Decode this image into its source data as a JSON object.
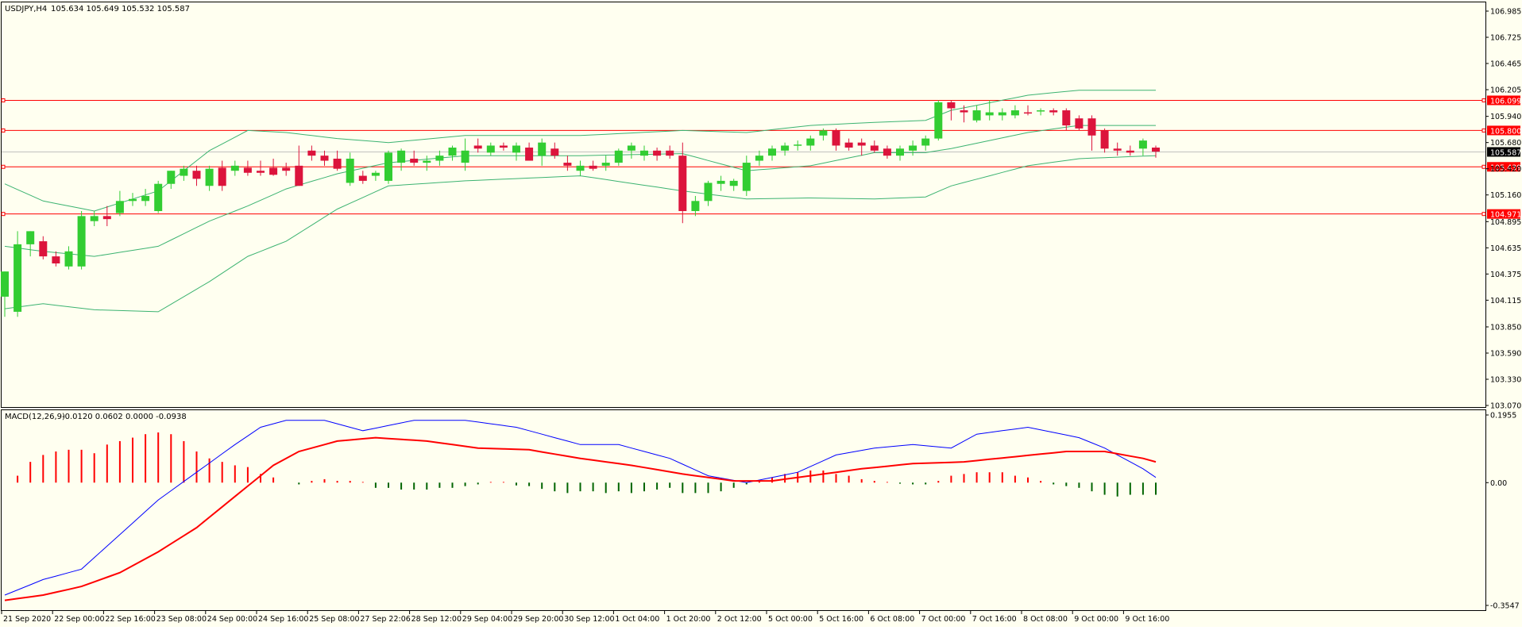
{
  "colors": {
    "background": "#FFFFF0",
    "frame": "#000000",
    "bull": "#32CD32",
    "bear": "#DC143C",
    "band": "#3CB371",
    "level": "#FF0000",
    "macd_line": "#0000FF",
    "signal_line": "#FF0000",
    "hist_pos": "#FF0000",
    "hist_neg": "#006400",
    "bid_line": "#C0C0C0"
  },
  "header": {
    "symbol_label": "USDJPY,H4",
    "ohlc_values": "105.634 105.649 105.532 105.587"
  },
  "indicator": {
    "label": "MACD(12,26,9)",
    "values": "-0.0120 0.0602 0.0000 -0.0938"
  },
  "price_axis": {
    "ticks": [
      "106.985",
      "106.725",
      "106.465",
      "106.205",
      "105.940",
      "105.680",
      "105.420",
      "105.160",
      "104.895",
      "104.635",
      "104.375",
      "104.115",
      "103.850",
      "103.590",
      "103.330",
      "103.070"
    ],
    "current_price": "105.587"
  },
  "levels": [
    "106.099",
    "105.800",
    "105.439",
    "104.971"
  ],
  "macd_axis": {
    "ticks": [
      "0.1955",
      "0.00",
      "-0.3547"
    ]
  },
  "time_axis": {
    "labels": [
      "21 Sep 2020",
      "22 Sep 00:00",
      "22 Sep 16:00",
      "23 Sep 08:00",
      "24 Sep 00:00",
      "24 Sep 16:00",
      "25 Sep 08:00",
      "27 Sep 22:06",
      "28 Sep 12:00",
      "29 Sep 04:00",
      "29 Sep 20:00",
      "30 Sep 12:00",
      "1 Oct 04:00",
      "1 Oct 20:00",
      "2 Oct 12:00",
      "5 Oct 00:00",
      "5 Oct 16:00",
      "6 Oct 08:00",
      "7 Oct 00:00",
      "7 Oct 16:00",
      "8 Oct 08:00",
      "9 Oct 00:00",
      "9 Oct 16:00"
    ]
  },
  "chart_data": [
    {
      "type": "candlestick",
      "title": "USDJPY,H4",
      "ylim": [
        103.07,
        106.985
      ],
      "candles": [
        [
          104.15,
          104.4,
          103.95,
          104.4
        ],
        [
          104.0,
          104.8,
          103.95,
          104.67
        ],
        [
          104.67,
          104.8,
          104.55,
          104.8
        ],
        [
          104.7,
          104.75,
          104.52,
          104.55
        ],
        [
          104.55,
          104.6,
          104.45,
          104.48
        ],
        [
          104.45,
          104.65,
          104.42,
          104.6
        ],
        [
          104.45,
          105.0,
          104.42,
          104.95
        ],
        [
          104.9,
          105.0,
          104.85,
          104.95
        ],
        [
          104.95,
          105.05,
          104.85,
          104.92
        ],
        [
          104.98,
          105.2,
          104.95,
          105.1
        ],
        [
          105.1,
          105.18,
          105.05,
          105.12
        ],
        [
          105.1,
          105.22,
          105.05,
          105.15
        ],
        [
          105.0,
          105.3,
          104.98,
          105.27
        ],
        [
          105.27,
          105.4,
          105.22,
          105.4
        ],
        [
          105.35,
          105.45,
          105.3,
          105.42
        ],
        [
          105.4,
          105.45,
          105.25,
          105.32
        ],
        [
          105.25,
          105.45,
          105.2,
          105.42
        ],
        [
          105.43,
          105.5,
          105.2,
          105.25
        ],
        [
          105.4,
          105.5,
          105.35,
          105.45
        ],
        [
          105.43,
          105.5,
          105.35,
          105.38
        ],
        [
          105.4,
          105.5,
          105.35,
          105.38
        ],
        [
          105.43,
          105.52,
          105.35,
          105.36
        ],
        [
          105.43,
          105.48,
          105.35,
          105.4
        ],
        [
          105.45,
          105.65,
          105.25,
          105.25
        ],
        [
          105.6,
          105.65,
          105.5,
          105.55
        ],
        [
          105.55,
          105.6,
          105.45,
          105.5
        ],
        [
          105.52,
          105.6,
          105.4,
          105.42
        ],
        [
          105.28,
          105.58,
          105.25,
          105.52
        ],
        [
          105.35,
          105.4,
          105.27,
          105.3
        ],
        [
          105.35,
          105.4,
          105.3,
          105.38
        ],
        [
          105.3,
          105.6,
          105.27,
          105.58
        ],
        [
          105.48,
          105.62,
          105.4,
          105.6
        ],
        [
          105.52,
          105.6,
          105.45,
          105.48
        ],
        [
          105.48,
          105.55,
          105.4,
          105.5
        ],
        [
          105.5,
          105.6,
          105.45,
          105.55
        ],
        [
          105.55,
          105.65,
          105.5,
          105.63
        ],
        [
          105.48,
          105.72,
          105.4,
          105.6
        ],
        [
          105.65,
          105.72,
          105.58,
          105.62
        ],
        [
          105.58,
          105.68,
          105.55,
          105.65
        ],
        [
          105.65,
          105.68,
          105.6,
          105.63
        ],
        [
          105.58,
          105.68,
          105.5,
          105.65
        ],
        [
          105.63,
          105.68,
          105.5,
          105.5
        ],
        [
          105.55,
          105.72,
          105.45,
          105.68
        ],
        [
          105.62,
          105.68,
          105.52,
          105.55
        ],
        [
          105.48,
          105.55,
          105.4,
          105.45
        ],
        [
          105.4,
          105.5,
          105.35,
          105.45
        ],
        [
          105.45,
          105.5,
          105.4,
          105.42
        ],
        [
          105.45,
          105.55,
          105.4,
          105.48
        ],
        [
          105.48,
          105.62,
          105.45,
          105.6
        ],
        [
          105.6,
          105.68,
          105.52,
          105.65
        ],
        [
          105.55,
          105.65,
          105.5,
          105.6
        ],
        [
          105.6,
          105.63,
          105.5,
          105.55
        ],
        [
          105.6,
          105.65,
          105.52,
          105.55
        ],
        [
          105.55,
          105.68,
          104.88,
          105.0
        ],
        [
          105.0,
          105.15,
          104.95,
          105.1
        ],
        [
          105.1,
          105.3,
          105.05,
          105.28
        ],
        [
          105.27,
          105.35,
          105.2,
          105.3
        ],
        [
          105.25,
          105.32,
          105.2,
          105.3
        ],
        [
          105.2,
          105.55,
          105.15,
          105.48
        ],
        [
          105.5,
          105.6,
          105.45,
          105.55
        ],
        [
          105.55,
          105.65,
          105.5,
          105.62
        ],
        [
          105.6,
          105.68,
          105.55,
          105.65
        ],
        [
          105.65,
          105.7,
          105.6,
          105.66
        ],
        [
          105.65,
          105.75,
          105.6,
          105.72
        ],
        [
          105.75,
          105.82,
          105.7,
          105.8
        ],
        [
          105.8,
          105.82,
          105.6,
          105.65
        ],
        [
          105.68,
          105.72,
          105.6,
          105.63
        ],
        [
          105.68,
          105.72,
          105.55,
          105.65
        ],
        [
          105.65,
          105.7,
          105.58,
          105.6
        ],
        [
          105.62,
          105.65,
          105.52,
          105.55
        ],
        [
          105.55,
          105.65,
          105.5,
          105.62
        ],
        [
          105.6,
          105.7,
          105.55,
          105.65
        ],
        [
          105.65,
          105.75,
          105.6,
          105.72
        ],
        [
          105.72,
          106.1,
          105.7,
          106.08
        ],
        [
          106.08,
          106.1,
          105.9,
          106.02
        ],
        [
          106.0,
          106.05,
          105.88,
          105.98
        ],
        [
          105.9,
          106.05,
          105.88,
          106.0
        ],
        [
          105.95,
          106.1,
          105.9,
          105.98
        ],
        [
          105.95,
          106.02,
          105.9,
          105.98
        ],
        [
          105.95,
          106.05,
          105.92,
          106.0
        ],
        [
          105.98,
          106.05,
          105.95,
          105.97
        ],
        [
          106.0,
          106.02,
          105.95,
          106.0
        ],
        [
          106.0,
          106.02,
          105.95,
          105.98
        ],
        [
          106.0,
          106.02,
          105.8,
          105.85
        ],
        [
          105.92,
          105.95,
          105.8,
          105.82
        ],
        [
          105.92,
          105.95,
          105.6,
          105.75
        ],
        [
          105.8,
          105.82,
          105.58,
          105.62
        ],
        [
          105.62,
          105.68,
          105.55,
          105.6
        ],
        [
          105.6,
          105.65,
          105.55,
          105.58
        ],
        [
          105.62,
          105.72,
          105.55,
          105.7
        ],
        [
          105.63,
          105.65,
          105.53,
          105.59
        ]
      ],
      "bands": {
        "upper_anchors": [
          [
            0,
            105.27
          ],
          [
            3,
            105.1
          ],
          [
            7,
            105.0
          ],
          [
            12,
            105.2
          ],
          [
            16,
            105.6
          ],
          [
            19,
            105.8
          ],
          [
            22,
            105.78
          ],
          [
            26,
            105.72
          ],
          [
            30,
            105.68
          ],
          [
            36,
            105.75
          ],
          [
            45,
            105.75
          ],
          [
            53,
            105.8
          ],
          [
            58,
            105.78
          ],
          [
            63,
            105.85
          ],
          [
            68,
            105.88
          ],
          [
            72,
            105.9
          ],
          [
            74,
            106.0
          ],
          [
            80,
            106.15
          ],
          [
            84,
            106.2
          ],
          [
            90,
            106.2
          ]
        ],
        "middle_anchors": [
          [
            0,
            104.65
          ],
          [
            3,
            104.6
          ],
          [
            7,
            104.55
          ],
          [
            12,
            104.65
          ],
          [
            16,
            104.9
          ],
          [
            19,
            105.05
          ],
          [
            22,
            105.22
          ],
          [
            26,
            105.37
          ],
          [
            30,
            105.48
          ],
          [
            36,
            105.55
          ],
          [
            45,
            105.55
          ],
          [
            53,
            105.57
          ],
          [
            58,
            105.4
          ],
          [
            63,
            105.45
          ],
          [
            68,
            105.58
          ],
          [
            72,
            105.58
          ],
          [
            74,
            105.62
          ],
          [
            80,
            105.78
          ],
          [
            84,
            105.85
          ],
          [
            90,
            105.85
          ]
        ],
        "lower_anchors": [
          [
            0,
            104.03
          ],
          [
            3,
            104.08
          ],
          [
            7,
            104.02
          ],
          [
            12,
            104.0
          ],
          [
            16,
            104.3
          ],
          [
            19,
            104.55
          ],
          [
            22,
            104.7
          ],
          [
            26,
            105.02
          ],
          [
            30,
            105.25
          ],
          [
            36,
            105.3
          ],
          [
            45,
            105.35
          ],
          [
            53,
            105.2
          ],
          [
            58,
            105.12
          ],
          [
            63,
            105.13
          ],
          [
            68,
            105.12
          ],
          [
            72,
            105.14
          ],
          [
            74,
            105.25
          ],
          [
            80,
            105.45
          ],
          [
            84,
            105.52
          ],
          [
            90,
            105.55
          ]
        ]
      },
      "horizontal_levels": [
        106.099,
        105.8,
        105.439,
        104.971
      ],
      "current_price": 105.587
    },
    {
      "type": "bar",
      "title": "MACD(12,26,9)",
      "ylim": [
        -0.3547,
        0.1955
      ],
      "histogram": [
        0.0,
        0.02,
        0.06,
        0.08,
        0.09,
        0.095,
        0.095,
        0.085,
        0.11,
        0.12,
        0.13,
        0.14,
        0.145,
        0.14,
        0.12,
        0.09,
        0.07,
        0.06,
        0.05,
        0.045,
        0.025,
        0.015,
        0.0,
        -0.005,
        0.005,
        0.01,
        0.005,
        0.005,
        0.002,
        -0.015,
        -0.015,
        -0.02,
        -0.02,
        -0.02,
        -0.015,
        -0.015,
        -0.01,
        -0.005,
        0.002,
        0.002,
        -0.008,
        -0.01,
        -0.018,
        -0.025,
        -0.03,
        -0.025,
        -0.025,
        -0.03,
        -0.025,
        -0.03,
        -0.025,
        -0.02,
        -0.015,
        -0.03,
        -0.03,
        -0.03,
        -0.025,
        -0.015,
        -0.005,
        0.005,
        0.015,
        0.025,
        0.03,
        0.035,
        0.035,
        0.025,
        0.02,
        0.01,
        0.005,
        0.002,
        -0.003,
        -0.005,
        -0.005,
        0.005,
        0.02,
        0.025,
        0.03,
        0.03,
        0.03,
        0.02,
        0.015,
        0.005,
        -0.005,
        -0.01,
        -0.015,
        -0.025,
        -0.035,
        -0.04,
        -0.035,
        -0.035,
        -0.035
      ],
      "macd_anchors": [
        [
          0,
          -0.325
        ],
        [
          3,
          -0.28
        ],
        [
          6,
          -0.25
        ],
        [
          9,
          -0.15
        ],
        [
          12,
          -0.05
        ],
        [
          15,
          0.03
        ],
        [
          18,
          0.11
        ],
        [
          20,
          0.16
        ],
        [
          22,
          0.18
        ],
        [
          25,
          0.18
        ],
        [
          28,
          0.15
        ],
        [
          32,
          0.18
        ],
        [
          36,
          0.18
        ],
        [
          40,
          0.16
        ],
        [
          45,
          0.11
        ],
        [
          48,
          0.11
        ],
        [
          52,
          0.07
        ],
        [
          55,
          0.02
        ],
        [
          58,
          0.0
        ],
        [
          62,
          0.03
        ],
        [
          65,
          0.08
        ],
        [
          68,
          0.1
        ],
        [
          71,
          0.11
        ],
        [
          74,
          0.1
        ],
        [
          76,
          0.14
        ],
        [
          80,
          0.16
        ],
        [
          84,
          0.13
        ],
        [
          86,
          0.1
        ],
        [
          89,
          0.04
        ],
        [
          90,
          0.015
        ]
      ],
      "signal_anchors": [
        [
          0,
          -0.34
        ],
        [
          3,
          -0.325
        ],
        [
          6,
          -0.3
        ],
        [
          9,
          -0.26
        ],
        [
          12,
          -0.2
        ],
        [
          15,
          -0.13
        ],
        [
          18,
          -0.04
        ],
        [
          21,
          0.05
        ],
        [
          23,
          0.09
        ],
        [
          26,
          0.12
        ],
        [
          29,
          0.13
        ],
        [
          33,
          0.12
        ],
        [
          37,
          0.1
        ],
        [
          41,
          0.095
        ],
        [
          45,
          0.07
        ],
        [
          49,
          0.05
        ],
        [
          53,
          0.025
        ],
        [
          57,
          0.005
        ],
        [
          60,
          0.005
        ],
        [
          63,
          0.02
        ],
        [
          67,
          0.04
        ],
        [
          71,
          0.055
        ],
        [
          75,
          0.06
        ],
        [
          79,
          0.075
        ],
        [
          83,
          0.09
        ],
        [
          86,
          0.09
        ],
        [
          89,
          0.07
        ],
        [
          90,
          0.06
        ]
      ]
    }
  ]
}
